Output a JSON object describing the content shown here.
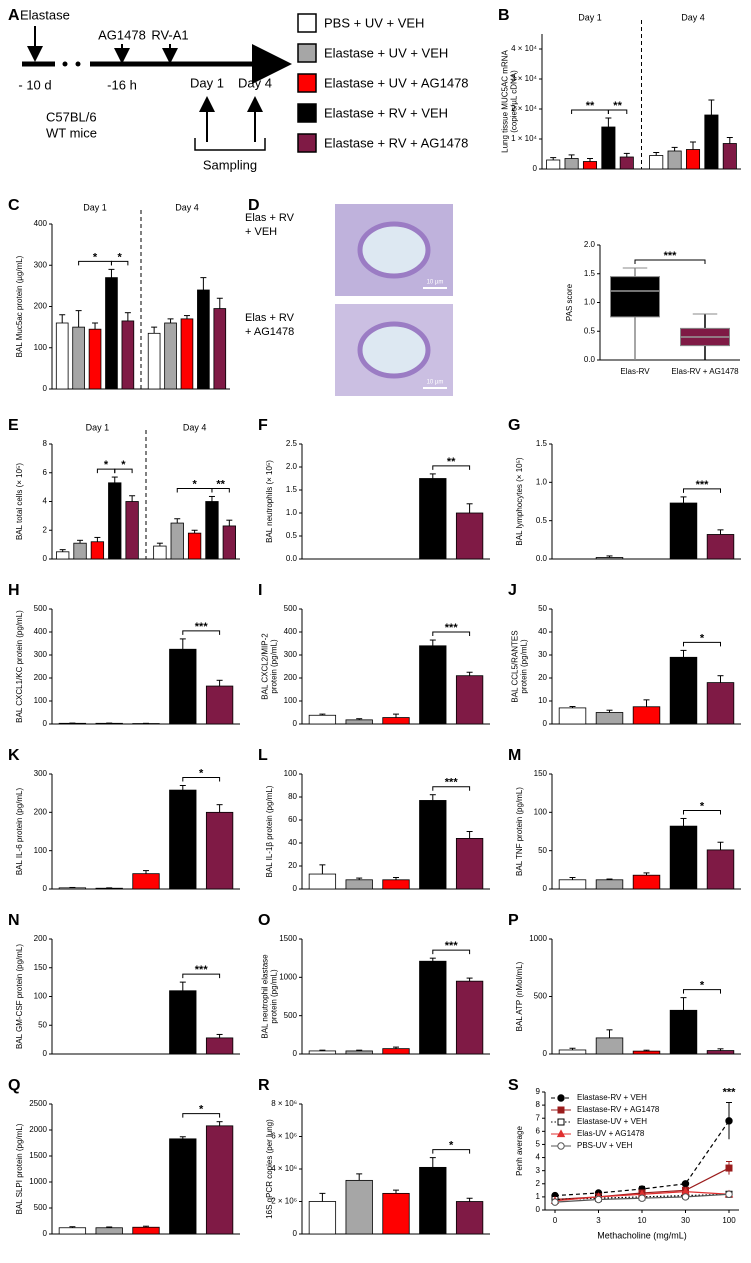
{
  "panel_a": {
    "letter": "A",
    "elastase": "Elastase",
    "elastase_time": "- 10 d",
    "ag1478": "AG1478",
    "ag1478_time": "-16 h",
    "rv": "RV-A1",
    "day1": "Day 1",
    "day4": "Day 4",
    "strain": "C57BL/6",
    "mice": "WT mice",
    "sampling": "Sampling"
  },
  "legend": [
    {
      "name": "PBS + UV + VEH",
      "color": "#ffffff"
    },
    {
      "name": "Elastase + UV + VEH",
      "color": "#a6a6a6"
    },
    {
      "name": "Elastase + UV + AG1478",
      "color": "#ff0000"
    },
    {
      "name": "Elastase + RV + VEH",
      "color": "#000000"
    },
    {
      "name": "Elastase + RV + AG1478",
      "color": "#7f1a45"
    }
  ],
  "chart_data": [
    {
      "type": "bar",
      "panel": "B",
      "ylabel": [
        "Lung tissue MUC5AC mRNA",
        "(copies/µL cDNA)"
      ],
      "group_labels": [
        "Day 1",
        "Day 4"
      ],
      "ylim": [
        0,
        45000
      ],
      "yticks": [
        0,
        {
          "value": 10000,
          "label": "1 × 10⁴"
        },
        {
          "value": 20000,
          "label": "2 × 10⁴"
        },
        {
          "value": 30000,
          "label": "3 × 10⁴"
        },
        {
          "value": 40000,
          "label": "4 × 10⁴"
        }
      ],
      "values": [
        3000,
        3500,
        2500,
        14000,
        4000,
        4500,
        6000,
        6500,
        18000,
        8500
      ],
      "errors": [
        800,
        1200,
        1000,
        3000,
        1200,
        1000,
        1200,
        2500,
        5000,
        2000
      ],
      "brackets": [
        {
          "bars": [
            1,
            3
          ],
          "label": "**"
        },
        {
          "bars": [
            3,
            4
          ],
          "label": "**"
        }
      ]
    },
    {
      "type": "bar",
      "panel": "C",
      "ylabel": [
        "BAL Muc5ac protein (µg/mL)"
      ],
      "group_labels": [
        "Day 1",
        "Day 4"
      ],
      "ylim": [
        0,
        400
      ],
      "yticks": [
        0,
        100,
        200,
        300,
        400
      ],
      "values": [
        160,
        150,
        145,
        270,
        165,
        135,
        160,
        170,
        240,
        195
      ],
      "errors": [
        20,
        40,
        15,
        20,
        20,
        15,
        10,
        8,
        30,
        25
      ],
      "brackets": [
        {
          "bars": [
            1,
            3
          ],
          "label": "*"
        },
        {
          "bars": [
            3,
            4
          ],
          "label": "*"
        }
      ]
    },
    {
      "type": "box",
      "panel": "D",
      "images": [
        {
          "label": [
            "Elas + RV",
            "+ VEH"
          ],
          "scale_bar": "10 µm"
        },
        {
          "label": [
            "Elas + RV",
            "+ AG1478"
          ],
          "scale_bar": "10 µm"
        }
      ],
      "ylabel": [
        "PAS score"
      ],
      "categories": [
        "Elas-RV",
        "Elas-RV + AG1478"
      ],
      "colors": [
        "#000000",
        "#7f1a45"
      ],
      "ylim": [
        0,
        2
      ],
      "yticks": [
        {
          "value": 0,
          "label": "0.0"
        },
        {
          "value": 0.5,
          "label": "0.5"
        },
        {
          "value": 1,
          "label": "1.0"
        },
        {
          "value": 1.5,
          "label": "1.5"
        },
        {
          "value": 2,
          "label": "2.0"
        }
      ],
      "boxes": [
        {
          "min": 0,
          "q1": 0.75,
          "median": 1.2,
          "q3": 1.45,
          "max": 1.6
        },
        {
          "min": 0,
          "q1": 0.25,
          "median": 0.4,
          "q3": 0.55,
          "max": 0.8
        }
      ],
      "brackets": [
        {
          "bars": [
            0,
            1
          ],
          "label": "***"
        }
      ]
    },
    {
      "type": "bar",
      "panel": "E",
      "ylabel": [
        "BAL total cells (× 10⁵)"
      ],
      "group_labels": [
        "Day 1",
        "Day 4"
      ],
      "ylim": [
        0,
        8
      ],
      "yticks": [
        0,
        2,
        4,
        6,
        8
      ],
      "values": [
        0.5,
        1.1,
        1.2,
        5.3,
        4.0,
        0.9,
        2.5,
        1.8,
        4.0,
        2.3
      ],
      "errors": [
        0.15,
        0.2,
        0.3,
        0.4,
        0.4,
        0.2,
        0.3,
        0.2,
        0.35,
        0.4
      ],
      "brackets": [
        {
          "bars": [
            2,
            3
          ],
          "label": "*"
        },
        {
          "bars": [
            3,
            4
          ],
          "label": "*"
        },
        {
          "bars": [
            6,
            8
          ],
          "label": "*"
        },
        {
          "bars": [
            8,
            9
          ],
          "label": "**"
        }
      ]
    },
    {
      "type": "bar",
      "panel": "F",
      "ylabel": [
        "BAL neutrophils (× 10⁵)"
      ],
      "ylim": [
        0,
        2.5
      ],
      "yticks": [
        {
          "value": 0,
          "label": "0.0"
        },
        {
          "value": 0.5,
          "label": "0.5"
        },
        {
          "value": 1,
          "label": "1.0"
        },
        {
          "value": 1.5,
          "label": "1.5"
        },
        {
          "value": 2,
          "label": "2.0"
        },
        {
          "value": 2.5,
          "label": "2.5"
        }
      ],
      "values": [
        0,
        0,
        0,
        1.75,
        1.0
      ],
      "errors": [
        0,
        0,
        0,
        0.1,
        0.2
      ],
      "brackets": [
        {
          "bars": [
            3,
            4
          ],
          "label": "**"
        }
      ]
    },
    {
      "type": "bar",
      "panel": "G",
      "ylabel": [
        "BAL lymphocytes (× 10⁵)"
      ],
      "ylim": [
        0,
        1.5
      ],
      "yticks": [
        {
          "value": 0,
          "label": "0.0"
        },
        {
          "value": 0.5,
          "label": "0.5"
        },
        {
          "value": 1,
          "label": "1.0"
        },
        {
          "value": 1.5,
          "label": "1.5"
        }
      ],
      "values": [
        0,
        0.02,
        0,
        0.73,
        0.32
      ],
      "errors": [
        0,
        0.02,
        0,
        0.08,
        0.06
      ],
      "brackets": [
        {
          "bars": [
            3,
            4
          ],
          "label": "***"
        }
      ]
    },
    {
      "type": "bar",
      "panel": "H",
      "ylabel": [
        "BAL CXCL1/KC protein (pg/mL)"
      ],
      "ylim": [
        0,
        500
      ],
      "yticks": [
        0,
        100,
        200,
        300,
        400,
        500
      ],
      "values": [
        3,
        3,
        2,
        325,
        165
      ],
      "errors": [
        1,
        1,
        1,
        45,
        25
      ],
      "brackets": [
        {
          "bars": [
            3,
            4
          ],
          "label": "***"
        }
      ]
    },
    {
      "type": "bar",
      "panel": "I",
      "ylabel": [
        "BAL CXCL2/MIP-2",
        "protein (pg/mL)"
      ],
      "ylim": [
        0,
        500
      ],
      "yticks": [
        0,
        100,
        200,
        300,
        400,
        500
      ],
      "values": [
        38,
        18,
        28,
        340,
        210
      ],
      "errors": [
        5,
        5,
        15,
        25,
        15
      ],
      "brackets": [
        {
          "bars": [
            3,
            4
          ],
          "label": "***"
        }
      ]
    },
    {
      "type": "bar",
      "panel": "J",
      "ylabel": [
        "BAL CCL5/RANTES",
        "protein (pg/mL)"
      ],
      "ylim": [
        0,
        50
      ],
      "yticks": [
        0,
        10,
        20,
        30,
        40,
        50
      ],
      "values": [
        7,
        5,
        7.5,
        29,
        18
      ],
      "errors": [
        0.6,
        1,
        3,
        3,
        3
      ],
      "brackets": [
        {
          "bars": [
            3,
            4
          ],
          "label": "*"
        }
      ]
    },
    {
      "type": "bar",
      "panel": "K",
      "ylabel": [
        "BAL IL-6 protein (pg/mL)"
      ],
      "ylim": [
        0,
        300
      ],
      "yticks": [
        0,
        100,
        200,
        300
      ],
      "values": [
        3,
        2,
        40,
        258,
        200
      ],
      "errors": [
        1,
        1,
        8,
        12,
        20
      ],
      "brackets": [
        {
          "bars": [
            3,
            4
          ],
          "label": "*"
        }
      ]
    },
    {
      "type": "bar",
      "panel": "L",
      "ylabel": [
        "BAL IL-1β protein (pg/mL)"
      ],
      "ylim": [
        0,
        100
      ],
      "yticks": [
        0,
        20,
        40,
        60,
        80,
        100
      ],
      "values": [
        13,
        8,
        8,
        77,
        44
      ],
      "errors": [
        8,
        1.5,
        2,
        5,
        6
      ],
      "brackets": [
        {
          "bars": [
            3,
            4
          ],
          "label": "***"
        }
      ]
    },
    {
      "type": "bar",
      "panel": "M",
      "ylabel": [
        "BAL TNF protein (pg/mL)"
      ],
      "ylim": [
        0,
        150
      ],
      "yticks": [
        0,
        50,
        100,
        150
      ],
      "values": [
        12,
        12,
        18,
        82,
        51
      ],
      "errors": [
        3,
        1,
        3,
        10,
        10
      ],
      "brackets": [
        {
          "bars": [
            3,
            4
          ],
          "label": "*"
        }
      ]
    },
    {
      "type": "bar",
      "panel": "N",
      "ylabel": [
        "BAL GM-CSF protein (pg/mL)"
      ],
      "ylim": [
        0,
        200
      ],
      "yticks": [
        0,
        50,
        100,
        150,
        200
      ],
      "values": [
        0,
        0,
        0,
        110,
        28
      ],
      "errors": [
        0,
        0,
        0,
        15,
        6
      ],
      "brackets": [
        {
          "bars": [
            3,
            4
          ],
          "label": "***"
        }
      ]
    },
    {
      "type": "bar",
      "panel": "O",
      "ylabel": [
        "BAL neutrophil elastase",
        "protein (pg/mL)"
      ],
      "ylim": [
        0,
        1500
      ],
      "yticks": [
        0,
        500,
        1000,
        1500
      ],
      "values": [
        40,
        40,
        70,
        1210,
        950
      ],
      "errors": [
        10,
        10,
        20,
        40,
        40
      ],
      "brackets": [
        {
          "bars": [
            3,
            4
          ],
          "label": "***"
        }
      ]
    },
    {
      "type": "bar",
      "panel": "P",
      "ylabel": [
        "BAL ATP (nMol/mL)"
      ],
      "ylim": [
        0,
        1000
      ],
      "yticks": [
        0,
        500,
        1000
      ],
      "values": [
        35,
        140,
        25,
        380,
        30
      ],
      "errors": [
        15,
        70,
        8,
        110,
        15
      ],
      "brackets": [
        {
          "bars": [
            3,
            4
          ],
          "label": "*"
        }
      ]
    },
    {
      "type": "bar",
      "panel": "Q",
      "ylabel": [
        "BAL SLPI protein (pg/mL)"
      ],
      "ylim": [
        0,
        2500
      ],
      "yticks": [
        0,
        500,
        1000,
        1500,
        2000,
        2500
      ],
      "values": [
        120,
        120,
        130,
        1830,
        2080
      ],
      "errors": [
        20,
        15,
        20,
        40,
        80
      ],
      "brackets": [
        {
          "bars": [
            3,
            4
          ],
          "label": "*"
        }
      ]
    },
    {
      "type": "bar",
      "panel": "R",
      "ylabel": [
        "16S qPCR copies (per lung)"
      ],
      "ylim": [
        0,
        8000000
      ],
      "yticks": [
        0,
        {
          "value": 2000000,
          "label": "2 × 10⁶"
        },
        {
          "value": 4000000,
          "label": "4 × 10⁶"
        },
        {
          "value": 6000000,
          "label": "6 × 10⁶"
        },
        {
          "value": 8000000,
          "label": "8 × 10⁶"
        }
      ],
      "values": [
        2000000,
        3300000,
        2500000,
        4100000,
        2000000
      ],
      "errors": [
        500000,
        400000,
        200000,
        600000,
        200000
      ],
      "brackets": [
        {
          "bars": [
            3,
            4
          ],
          "label": "*"
        }
      ]
    },
    {
      "type": "line",
      "panel": "S",
      "ylabel": [
        "Penh average"
      ],
      "xlabel": "Methacholine (mg/mL)",
      "categories": [
        "0",
        "3",
        "10",
        "30",
        "100"
      ],
      "ylim": [
        0,
        9
      ],
      "yticks": [
        0,
        1,
        2,
        3,
        4,
        5,
        6,
        7,
        8,
        9
      ],
      "legend_position": "upper left",
      "annotation": "***",
      "series": [
        {
          "name": "Elastase-RV + VEH",
          "color": "#000000",
          "marker": "circle",
          "filled": true,
          "dash": "dashed",
          "values": [
            1.1,
            1.3,
            1.6,
            2.0,
            6.8
          ],
          "errors": [
            0.1,
            0.1,
            0.2,
            0.1,
            1.4
          ]
        },
        {
          "name": "Elastase-RV + AG1478",
          "color": "#9b1c1c",
          "marker": "square",
          "filled": true,
          "dash": "solid",
          "values": [
            0.8,
            1.0,
            1.3,
            1.5,
            3.2
          ],
          "errors": [
            0.05,
            0.1,
            0.2,
            0.2,
            0.5
          ]
        },
        {
          "name": "Elastase-UV + VEH",
          "color": "#000000",
          "marker": "square",
          "filled": false,
          "dash": "dotted",
          "values": [
            0.8,
            0.9,
            1.0,
            1.1,
            1.2
          ]
        },
        {
          "name": "Elas-UV + AG1478",
          "color": "#e03030",
          "marker": "triangle",
          "filled": true,
          "dash": "solid",
          "values": [
            0.7,
            1.0,
            1.2,
            1.4,
            1.2
          ]
        },
        {
          "name": "PBS-UV + VEH",
          "color": "#555555",
          "marker": "circle",
          "filled": false,
          "dash": "solid",
          "values": [
            0.6,
            0.8,
            0.9,
            1.0,
            1.2
          ]
        }
      ]
    }
  ]
}
